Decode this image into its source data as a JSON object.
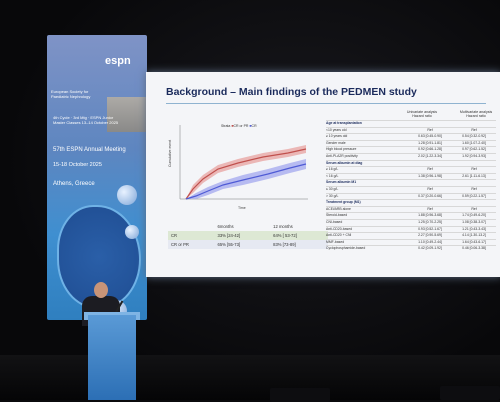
{
  "banner": {
    "brand": "espn",
    "brand_sub": "European Society for Paediatric Nephrology",
    "cycle": "4th Cycle · 3rd Mtg · ESPN Junior Master Classes 13–14 October 2025",
    "meeting": "57th ESPN Annual Meeting",
    "dates": "15-18 October 2025",
    "city": "Athens, Greece"
  },
  "slide": {
    "title": "Background – Main findings of the PEDMEN study",
    "legend_a": "Strata",
    "legend_b": "CR or PR",
    "legend_c": "CR",
    "y_axis_label": "Cumulative event",
    "x_axis_label": "Time",
    "summary": {
      "headers": [
        "",
        "6months",
        "12 months"
      ],
      "rows": [
        {
          "label": "CR",
          "m6": "33% [24-42]",
          "m12": "64% [ 53-72]"
        },
        {
          "label": "CR or PR",
          "m6": "65% [55-73]",
          "m12": "83% [73-89]"
        }
      ]
    },
    "regression": {
      "col1": "Univariate analysis Hazard ratio",
      "col2": "Multivariate analysis Hazard ratio",
      "rows": [
        {
          "label": "Age at transplantation",
          "u": "",
          "m": "",
          "sec": true
        },
        {
          "label": "<10 years old",
          "u": "Ref",
          "m": "Ref",
          "sec": false
        },
        {
          "label": "≥ 10 years old",
          "u": "0.63 [0.45-0.90]",
          "m": "0.54 [0.32-0.92]",
          "sec": false
        },
        {
          "label": "Gender male",
          "u": "1.28 [0.91-1.81]",
          "m": "1.60 [1.07-2.40]",
          "sec": false
        },
        {
          "label": "High blood pressure",
          "u": "0.92 [0.66-1.28]",
          "m": "0.97 [0.62-1.52]",
          "sec": false
        },
        {
          "label": "Anti-PLA2R positivity",
          "u": "2.02 [1.22-3.34]",
          "m": "1.92 [0.94-3.93]",
          "sec": false
        },
        {
          "label": "Serum albumin at diag",
          "u": "",
          "m": "",
          "sec": true
        },
        {
          "label": "≥ 16 g/L",
          "u": "Ref",
          "m": "Ref",
          "sec": false
        },
        {
          "label": "< 16 g/L",
          "u": "1.38 [0.96-1.98]",
          "m": "2.61 [1.11-6.13]",
          "sec": false
        },
        {
          "label": "Serum albumin M1",
          "u": "",
          "m": "",
          "sec": true
        },
        {
          "label": "≤ 30 g/L",
          "u": "Ref",
          "m": "Ref",
          "sec": false
        },
        {
          "label": "> 30 g/L",
          "u": "0.37 [0.20-0.66]",
          "m": "0.59 [0.22-1.57]",
          "sec": false
        },
        {
          "label": "Treatment group (M1)",
          "u": "",
          "m": "",
          "sec": true
        },
        {
          "label": "ACEi/ARB alone",
          "u": "Ref",
          "m": "Ref",
          "sec": false
        },
        {
          "label": "Steroid-based",
          "u": "1.88 [0.96-3.68]",
          "m": "1.74 [0.49-6.20]",
          "sec": false
        },
        {
          "label": "CNI-based",
          "u": "1.25 [0.70-2.25]",
          "m": "1.08 [0.38-3.07]",
          "sec": false
        },
        {
          "label": "Anti-CD20-based",
          "u": "0.93 [0.52-1.67]",
          "m": "1.21 [0.43-3.43]",
          "sec": false
        },
        {
          "label": "Anti-CD20 + CNI",
          "u": "2.27 [0.90-5.69]",
          "m": "4.14 [1.30-13.2]",
          "sec": false
        },
        {
          "label": "MMF-based",
          "u": "1.10 [0.49-2.44]",
          "m": "1.64 [0.43-6.17]",
          "sec": false
        },
        {
          "label": "Cyclophosphamide-based",
          "u": "0.42 [0.09-1.92]",
          "m": "0.46 [0.06-3.38]",
          "sec": false
        }
      ]
    }
  },
  "colors": {
    "banner": "#3f8fd0",
    "slide_title": "#1b2b5c",
    "series_red": "#c0504d",
    "series_blue": "#4f5bd5"
  }
}
